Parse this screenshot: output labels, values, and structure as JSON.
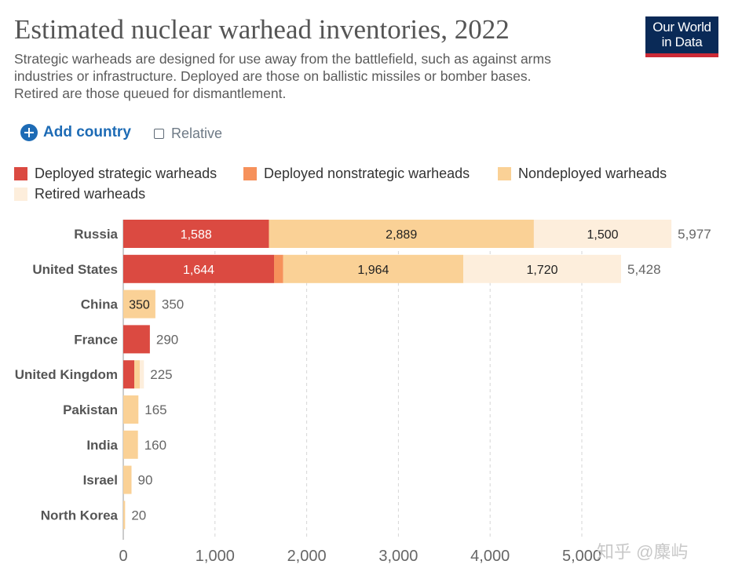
{
  "header": {
    "title": "Estimated nuclear warhead inventories, 2022",
    "subtitle_lines": [
      "Strategic warheads are designed for use away from the battlefield, such as against arms",
      "industries or infrastructure. Deployed are those on ballistic missiles or bomber bases.",
      "Retired are those queued for dismantlement."
    ],
    "logo_lines": [
      "Our World",
      "in Data"
    ]
  },
  "controls": {
    "add_country_label": "Add country",
    "relative_label": "Relative"
  },
  "watermark": "知乎 @麋屿",
  "colors": {
    "brand_navy": "#0a2a57",
    "brand_red": "#cc2a36",
    "link_blue": "#1d6bb5"
  },
  "chart_data": {
    "type": "bar",
    "orientation": "horizontal",
    "stacked": true,
    "categories": [
      "Russia",
      "United States",
      "China",
      "France",
      "United Kingdom",
      "Pakistan",
      "India",
      "Israel",
      "North Korea"
    ],
    "series": [
      {
        "name": "Deployed strategic warheads",
        "color": "#db4a41",
        "values": [
          1588,
          1644,
          0,
          290,
          120,
          0,
          0,
          0,
          0
        ],
        "labels": [
          "1,588",
          "1,644",
          "",
          "",
          "",
          "",
          "",
          "",
          ""
        ]
      },
      {
        "name": "Deployed nonstrategic warheads",
        "color": "#f6915b",
        "values": [
          0,
          100,
          0,
          0,
          0,
          0,
          0,
          0,
          0
        ],
        "labels": [
          "",
          "",
          "",
          "",
          "",
          "",
          "",
          "",
          ""
        ]
      },
      {
        "name": "Nondeployed warheads",
        "color": "#fad196",
        "values": [
          2889,
          1964,
          350,
          0,
          60,
          165,
          160,
          90,
          20
        ],
        "labels": [
          "2,889",
          "1,964",
          "350",
          "",
          "",
          "",
          "",
          "",
          ""
        ]
      },
      {
        "name": "Retired warheads",
        "color": "#fdeedc",
        "values": [
          1500,
          1720,
          0,
          0,
          45,
          0,
          0,
          0,
          0
        ],
        "labels": [
          "1,500",
          "1,720",
          "",
          "",
          "",
          "",
          "",
          "",
          ""
        ]
      }
    ],
    "totals": [
      5977,
      5428,
      350,
      290,
      225,
      165,
      160,
      90,
      20
    ],
    "total_labels": [
      "5,977",
      "5,428",
      "350",
      "290",
      "225",
      "165",
      "160",
      "90",
      "20"
    ],
    "x_ticks": [
      0,
      1000,
      2000,
      3000,
      4000,
      5000
    ],
    "x_tick_labels": [
      "0",
      "1,000",
      "2,000",
      "3,000",
      "4,000",
      "5,000"
    ],
    "xlim": [
      0,
      6000
    ],
    "grid": "vertical dashed",
    "legend_position": "top"
  }
}
